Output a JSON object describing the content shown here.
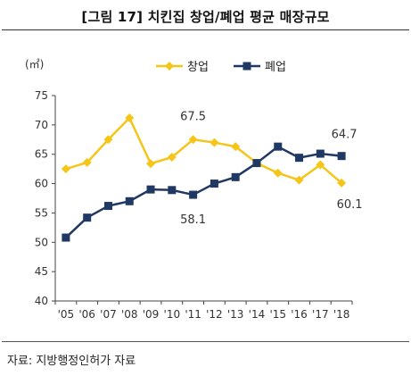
{
  "title": "[그림 17] 치킨집 창업/폐업 평균 매장규모",
  "source": "자료: 지방행정인허가 자료",
  "chart_data": {
    "type": "line",
    "unit_label": "(㎡)",
    "categories": [
      "'05",
      "'06",
      "'07",
      "'08",
      "'09",
      "'10",
      "'11",
      "'12",
      "'13",
      "'14",
      "'15",
      "'16",
      "'17",
      "'18"
    ],
    "ylim": [
      40,
      75
    ],
    "yticks": [
      40,
      45,
      50,
      55,
      60,
      65,
      70,
      75
    ],
    "grid": false,
    "legend_position": "top",
    "series": [
      {
        "name": "창업",
        "color": "#F5C518",
        "marker": "diamond",
        "values": [
          62.5,
          63.6,
          67.5,
          71.2,
          63.4,
          64.5,
          67.5,
          67.0,
          66.3,
          63.5,
          61.8,
          60.6,
          63.2,
          60.1
        ]
      },
      {
        "name": "폐업",
        "color": "#1F3864",
        "marker": "square",
        "values": [
          50.8,
          54.2,
          56.2,
          57.0,
          59.0,
          58.9,
          58.1,
          60.0,
          61.1,
          63.5,
          66.3,
          64.4,
          65.1,
          64.7
        ]
      }
    ],
    "annotations": [
      {
        "text": "67.5",
        "series": 0,
        "index": 6
      },
      {
        "text": "58.1",
        "series": 1,
        "index": 6
      },
      {
        "text": "64.7",
        "series": 1,
        "index": 13
      },
      {
        "text": "60.1",
        "series": 0,
        "index": 13
      }
    ]
  }
}
